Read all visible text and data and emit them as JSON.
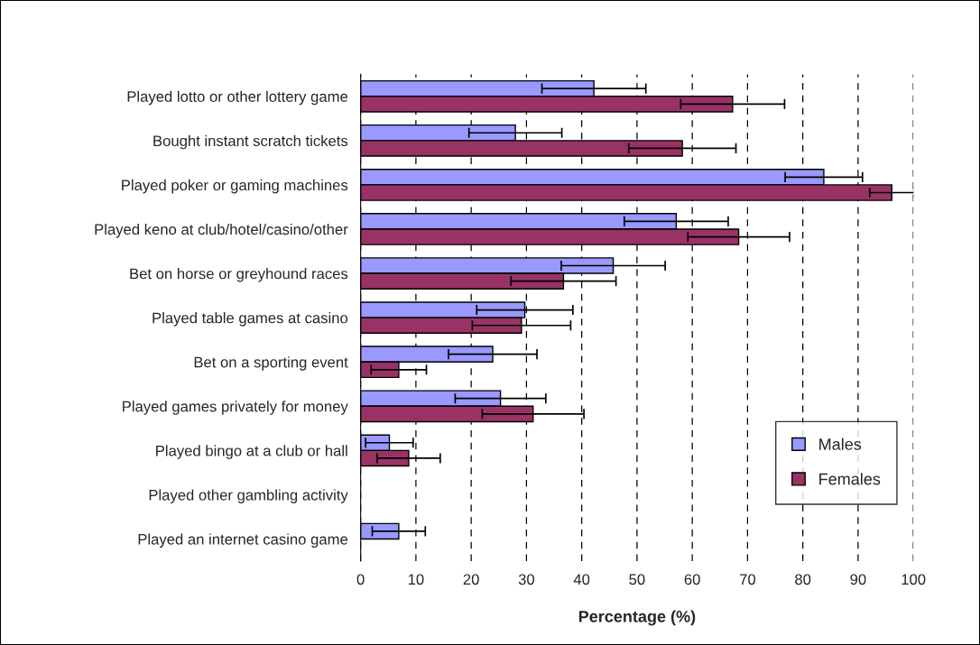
{
  "chart_data": {
    "type": "bar",
    "orientation": "horizontal",
    "xlabel": "Percentage (%)",
    "categories": [
      "Played lotto or other lottery game",
      "Bought instant scratch tickets",
      "Played poker or gaming machines",
      "Played keno at club/hotel/casino/other",
      "Bet on horse or greyhound races",
      "Played table games at casino",
      "Bet on a sporting event",
      "Played games privately for money",
      "Played bingo at a club or hall",
      "Played other gambling activity",
      "Played an internet casino game"
    ],
    "series": [
      {
        "name": "Males",
        "color": "#9999ff",
        "values": [
          42.2,
          28.0,
          83.8,
          57.1,
          45.7,
          29.7,
          23.9,
          25.3,
          5.2,
          null,
          6.9
        ],
        "errors": [
          9.4,
          8.4,
          7.0,
          9.4,
          9.4,
          8.7,
          8.0,
          8.2,
          4.3,
          null,
          4.8
        ]
      },
      {
        "name": "Females",
        "color": "#993366",
        "values": [
          67.3,
          58.2,
          96.1,
          68.4,
          36.7,
          29.1,
          6.9,
          31.2,
          8.7,
          null,
          null
        ],
        "errors": [
          9.4,
          9.7,
          4.0,
          9.2,
          9.5,
          8.9,
          5.0,
          9.2,
          5.7,
          null,
          null
        ]
      }
    ],
    "xlim": [
      0,
      100
    ],
    "xticks": [
      0,
      10,
      20,
      30,
      40,
      50,
      60,
      70,
      80,
      90,
      100
    ],
    "grid": "x",
    "legend": "bottom right"
  }
}
